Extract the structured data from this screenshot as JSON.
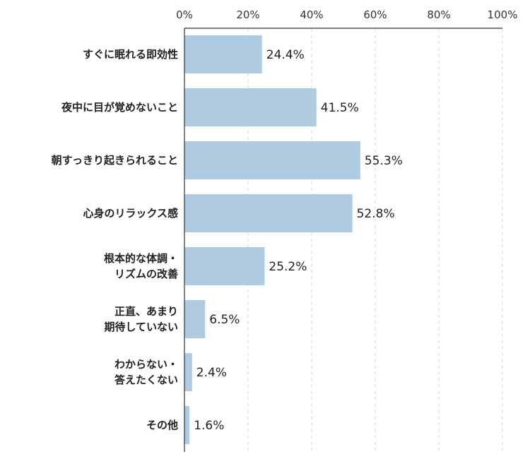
{
  "chart_data": {
    "type": "bar",
    "orientation": "horizontal",
    "categories": [
      [
        "すぐに眠れる即効性"
      ],
      [
        "夜中に目が覚めないこと"
      ],
      [
        "朝すっきり起きられること"
      ],
      [
        "心身のリラックス感"
      ],
      [
        "根本的な体調・",
        "リズムの改善"
      ],
      [
        "正直、あまり",
        "期待していない"
      ],
      [
        "わからない・",
        "答えたくない"
      ],
      [
        "その他"
      ]
    ],
    "values": [
      24.4,
      41.5,
      55.3,
      52.8,
      25.2,
      6.5,
      2.4,
      1.6
    ],
    "value_labels": [
      "24.4%",
      "41.5%",
      "55.3%",
      "52.8%",
      "25.2%",
      "6.5%",
      "2.4%",
      "1.6%"
    ],
    "xlim": [
      0,
      100
    ],
    "xticks": [
      0,
      20,
      40,
      60,
      80,
      100
    ],
    "xtick_labels": [
      "0%",
      "20%",
      "40%",
      "60%",
      "80%",
      "100%"
    ],
    "xaxis_position": "top",
    "grid": "vertical dashed",
    "legend": "none",
    "title": "",
    "xlabel": "",
    "ylabel": "",
    "colors": {
      "bar": "#aecbe2",
      "axis": "#333333",
      "grid": "#d9d9d9",
      "text": "#222222"
    }
  }
}
